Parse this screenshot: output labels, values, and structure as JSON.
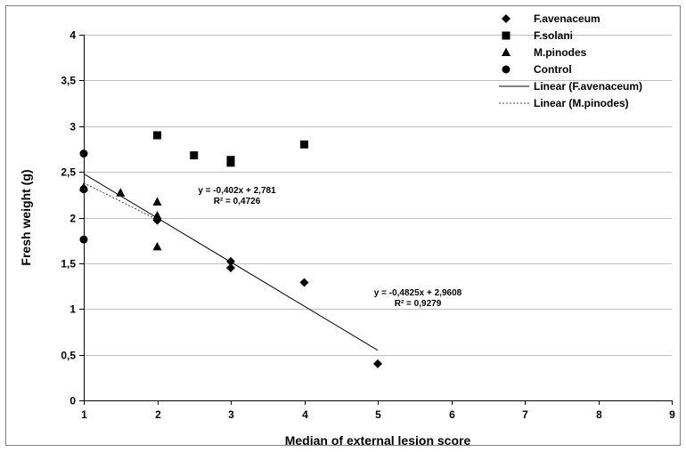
{
  "chart_data": {
    "type": "scatter",
    "title": "",
    "xlabel": "Median of external lesion score",
    "ylabel": "Fresh weight (g)",
    "xlim": [
      1,
      9
    ],
    "ylim": [
      0,
      4
    ],
    "x_ticks": [
      1,
      2,
      3,
      4,
      5,
      6,
      7,
      8,
      9
    ],
    "y_ticks": [
      0,
      0.5,
      1,
      1.5,
      2,
      2.5,
      3,
      3.5,
      4
    ],
    "y_tick_labels": [
      "0",
      "0,5",
      "1",
      "1,5",
      "2",
      "2,5",
      "3",
      "3,5",
      "4"
    ],
    "grid": "horizontal",
    "legend_position": "top-right",
    "series": [
      {
        "name": "F.avenaceum",
        "marker": "diamond",
        "color": "#000000",
        "points": [
          [
            2,
            1.97
          ],
          [
            3,
            1.52
          ],
          [
            3,
            1.45
          ],
          [
            4,
            1.29
          ],
          [
            5,
            0.4
          ]
        ]
      },
      {
        "name": "F.solani",
        "marker": "square",
        "color": "#000000",
        "points": [
          [
            2,
            2.9
          ],
          [
            2.5,
            2.68
          ],
          [
            3,
            2.63
          ],
          [
            3,
            2.6
          ],
          [
            4,
            2.8
          ]
        ]
      },
      {
        "name": "M.pinodes",
        "marker": "triangle",
        "color": "#000000",
        "points": [
          [
            1,
            2.33
          ],
          [
            1.5,
            2.27
          ],
          [
            2,
            2.17
          ],
          [
            2,
            2.02
          ],
          [
            2,
            1.68
          ]
        ]
      },
      {
        "name": "Control",
        "marker": "circle",
        "color": "#000000",
        "points": [
          [
            1,
            2.7
          ],
          [
            1,
            2.31
          ],
          [
            1,
            1.76
          ]
        ]
      }
    ],
    "trendlines": [
      {
        "name": "Linear (F.avenaceum)",
        "style": "solid",
        "slope": -0.4825,
        "intercept": 2.9608,
        "x_range": [
          1,
          5
        ],
        "equation": "y = -0,4825x + 2,9608",
        "r2": "R² = 0,9279"
      },
      {
        "name": "Linear (M.pinodes)",
        "style": "dotted",
        "slope": -0.402,
        "intercept": 2.781,
        "x_range": [
          1,
          2
        ],
        "equation": "y = -0,402x + 2,781",
        "r2": "R² = 0,4726"
      }
    ]
  }
}
